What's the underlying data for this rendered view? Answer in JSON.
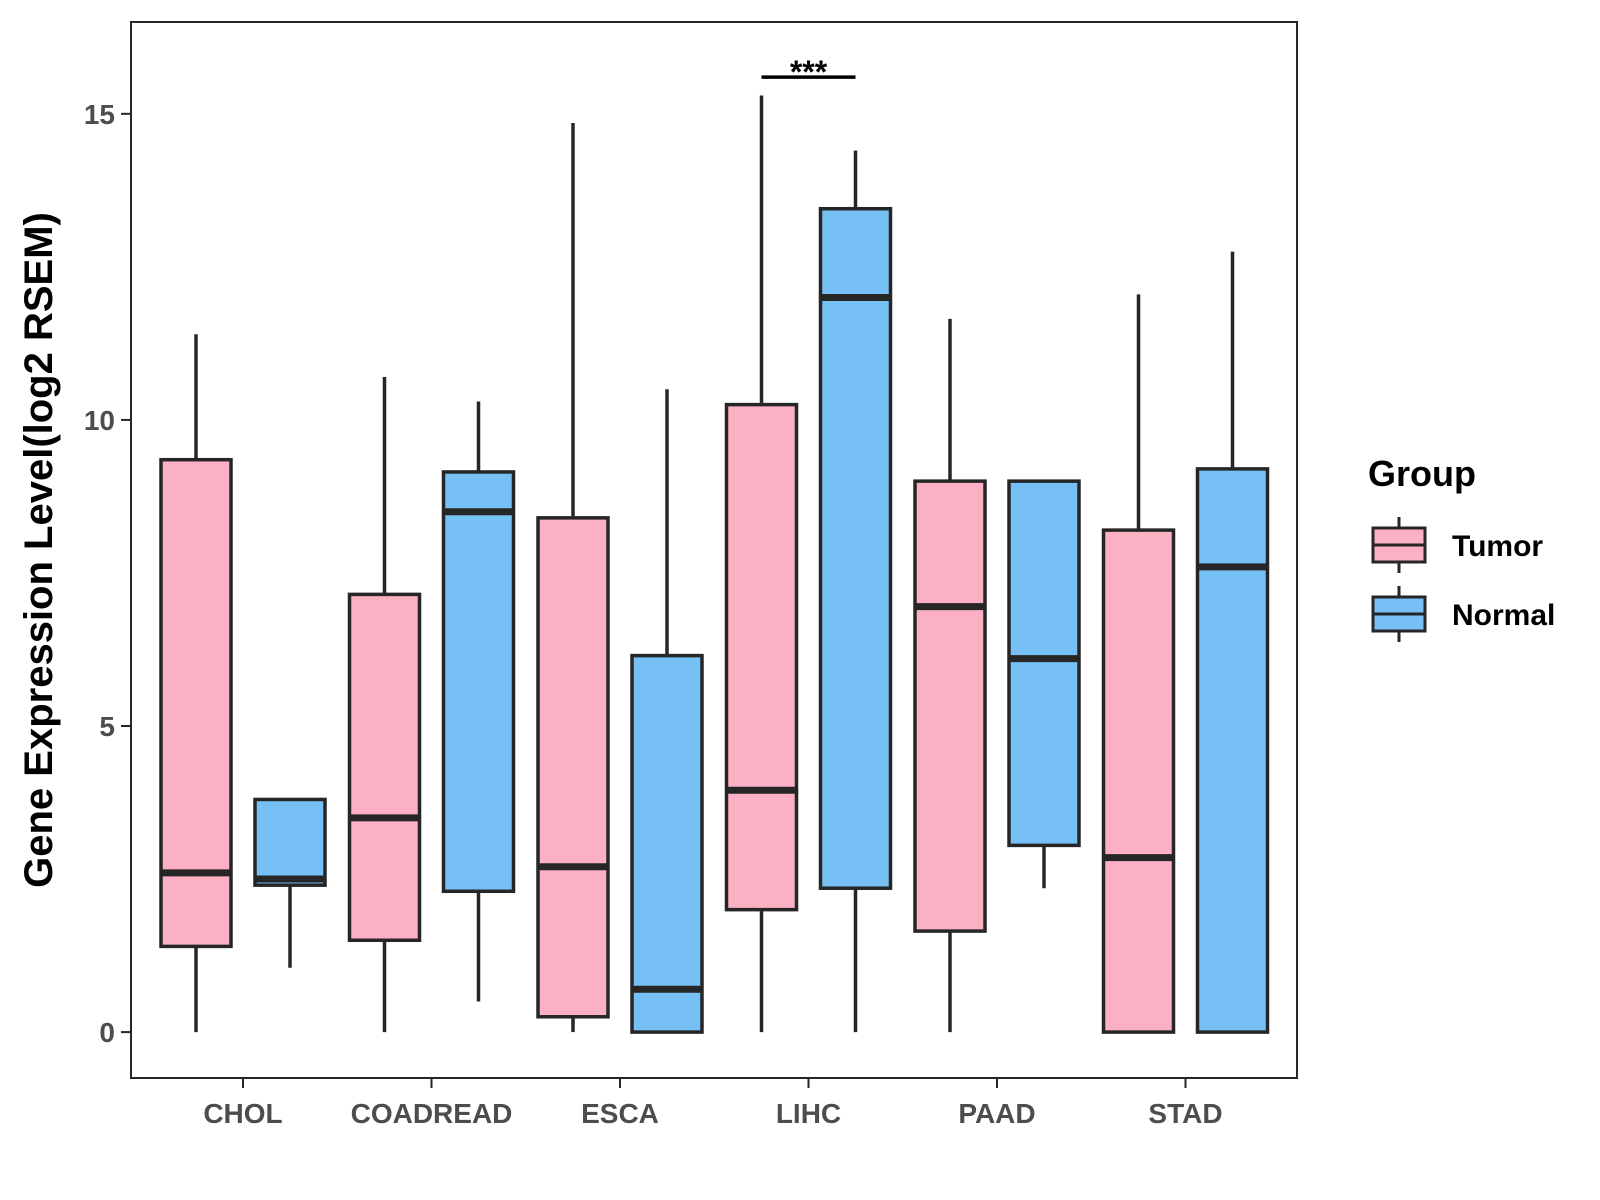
{
  "chart_data": {
    "type": "boxplot",
    "title": "",
    "xlabel": "",
    "ylabel": "Gene Expression Level(log2 RSEM)",
    "ylim": [
      -0.75,
      16.5
    ],
    "y_ticks": [
      0,
      5,
      10,
      15
    ],
    "y_tick_labels": [
      "0",
      "5",
      "10",
      "15"
    ],
    "categories": [
      "CHOL",
      "COADREAD",
      "ESCA",
      "LIHC",
      "PAAD",
      "STAD"
    ],
    "grid": false,
    "legend": {
      "title": "Group",
      "position": "right",
      "entries": [
        "Tumor",
        "Normal"
      ]
    },
    "series": [
      {
        "name": "Tumor",
        "color": "#FBB1C3",
        "boxes": [
          {
            "min": 0.0,
            "q1": 1.4,
            "median": 2.6,
            "q3": 9.35,
            "max": 11.4
          },
          {
            "min": 0.0,
            "q1": 1.5,
            "median": 3.5,
            "q3": 7.15,
            "max": 10.7
          },
          {
            "min": 0.0,
            "q1": 0.25,
            "median": 2.7,
            "q3": 8.4,
            "max": 14.85
          },
          {
            "min": 0.0,
            "q1": 2.0,
            "median": 3.95,
            "q3": 10.25,
            "max": 15.3
          },
          {
            "min": 0.0,
            "q1": 1.65,
            "median": 6.95,
            "q3": 9.0,
            "max": 11.65
          },
          {
            "min": 0.0,
            "q1": 0.0,
            "median": 2.85,
            "q3": 8.2,
            "max": 12.05
          }
        ]
      },
      {
        "name": "Normal",
        "color": "#76C0F6",
        "boxes": [
          {
            "min": 1.05,
            "q1": 2.4,
            "median": 2.5,
            "q3": 3.8,
            "max": 3.8
          },
          {
            "min": 0.5,
            "q1": 2.3,
            "median": 8.5,
            "q3": 9.15,
            "max": 10.3
          },
          {
            "min": 0.0,
            "q1": 0.0,
            "median": 0.7,
            "q3": 6.15,
            "max": 10.5
          },
          {
            "min": 0.0,
            "q1": 2.35,
            "median": 12.0,
            "q3": 13.45,
            "max": 14.4
          },
          {
            "min": 2.35,
            "q1": 3.05,
            "median": 6.1,
            "q3": 9.0,
            "max": 9.0
          },
          {
            "min": 0.0,
            "q1": 0.0,
            "median": 7.6,
            "q3": 9.2,
            "max": 12.75
          }
        ]
      }
    ],
    "annotations": [
      {
        "category": "LIHC",
        "text": "***",
        "y": 15.6
      }
    ]
  }
}
